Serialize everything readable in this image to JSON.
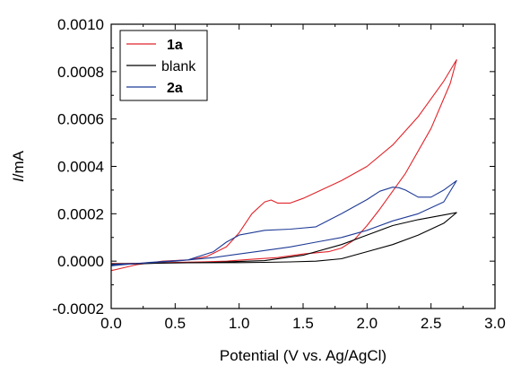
{
  "chart_data": {
    "type": "line",
    "xlabel": "Potential (V vs. Ag/AgCl)",
    "ylabel": "I/mA",
    "xlim": [
      0.0,
      3.0
    ],
    "ylim": [
      -0.0002,
      0.001
    ],
    "xticks": [
      "0.0",
      "0.5",
      "1.0",
      "1.5",
      "2.0",
      "2.5",
      "3.0"
    ],
    "yticks": [
      "-0.0002",
      "0.0000",
      "0.0002",
      "0.0004",
      "0.0006",
      "0.0008",
      "0.0010"
    ],
    "grid": false,
    "legend_position": "top-left",
    "series": [
      {
        "name": "1a",
        "color": "#e0242a",
        "bold_label": true,
        "x": [
          0.0,
          0.2,
          0.4,
          0.6,
          0.75,
          0.9,
          1.0,
          1.1,
          1.2,
          1.25,
          1.3,
          1.4,
          1.5,
          1.6,
          1.8,
          2.0,
          2.2,
          2.4,
          2.6,
          2.7,
          2.65,
          2.5,
          2.3,
          2.1,
          2.0,
          1.9,
          1.8,
          1.7,
          1.5,
          1.3,
          1.1,
          0.9,
          0.7,
          0.5,
          0.3,
          0.1,
          0.0
        ],
        "y": [
          -4e-05,
          -1.5e-05,
          0.0,
          5e-06,
          2e-05,
          6e-05,
          0.00012,
          0.0002,
          0.00025,
          0.000258,
          0.000245,
          0.000245,
          0.000265,
          0.00029,
          0.00034,
          0.0004,
          0.00049,
          0.00061,
          0.00076,
          0.00085,
          0.00075,
          0.00056,
          0.00037,
          0.00022,
          0.00015,
          9e-05,
          5.5e-05,
          4e-05,
          3e-05,
          1.5e-05,
          8e-06,
          0.0,
          -3e-06,
          -5e-06,
          -8e-06,
          -1e-05,
          -1e-05
        ]
      },
      {
        "name": "blank",
        "color": "#000000",
        "bold_label": false,
        "x": [
          0.0,
          0.4,
          0.8,
          1.2,
          1.5,
          1.8,
          2.0,
          2.2,
          2.4,
          2.6,
          2.7,
          2.6,
          2.4,
          2.2,
          2.0,
          1.8,
          1.6,
          1.4,
          1.2,
          1.0,
          0.6,
          0.2,
          0.0
        ],
        "y": [
          -1.5e-05,
          -8e-06,
          -5e-06,
          2e-06,
          2.5e-05,
          7e-05,
          0.00011,
          0.00015,
          0.000175,
          0.000195,
          0.000205,
          0.00016,
          0.00011,
          7e-05,
          4e-05,
          1e-05,
          0.0,
          -3e-06,
          -5e-06,
          -6e-06,
          -7e-06,
          -1e-05,
          -1.2e-05
        ]
      },
      {
        "name": "2a",
        "color": "#1f3b96",
        "bold_label": true,
        "x": [
          0.0,
          0.3,
          0.6,
          0.8,
          0.9,
          1.0,
          1.2,
          1.4,
          1.6,
          1.8,
          2.0,
          2.1,
          2.2,
          2.25,
          2.3,
          2.4,
          2.5,
          2.6,
          2.7,
          2.6,
          2.4,
          2.2,
          2.0,
          1.8,
          1.6,
          1.4,
          1.2,
          1.0,
          0.8,
          0.5,
          0.2,
          0.0
        ],
        "y": [
          -2e-05,
          -5e-06,
          5e-06,
          4e-05,
          8e-05,
          0.00011,
          0.00013,
          0.000135,
          0.000145,
          0.0002,
          0.00026,
          0.000295,
          0.000312,
          0.00031,
          0.0003,
          0.00027,
          0.00027,
          0.0003,
          0.00034,
          0.00025,
          0.0002,
          0.00017,
          0.00013,
          0.0001,
          8e-05,
          6e-05,
          4.5e-05,
          3e-05,
          1.5e-05,
          0.0,
          -1e-05,
          -1.5e-05
        ]
      }
    ]
  }
}
